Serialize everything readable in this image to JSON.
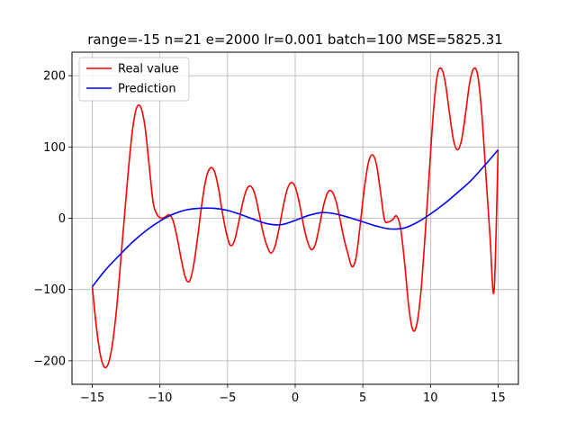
{
  "chart_data": {
    "type": "line",
    "title": "range=-15 n=21 e=2000 lr=0.001 batch=100 MSE=5825.31",
    "xlabel": "",
    "ylabel": "",
    "xlim": [
      -16.5,
      16.5
    ],
    "ylim": [
      -233,
      233
    ],
    "grid": true,
    "legend_position": "top-left",
    "x_ticks": [
      -15,
      -10,
      -5,
      0,
      5,
      10,
      15
    ],
    "x_tick_labels": [
      "−15",
      "−10",
      "−5",
      "0",
      "5",
      "10",
      "15"
    ],
    "y_ticks": [
      -200,
      -100,
      0,
      100,
      200
    ],
    "y_tick_labels": [
      "−200",
      "−100",
      "0",
      "100",
      "200"
    ],
    "series": [
      {
        "name": "Real value",
        "color": "#ff0000",
        "x": [
          -15,
          -14.7,
          -14.4,
          -14.1,
          -13.8,
          -13.5,
          -13.2,
          -12.9,
          -12.6,
          -12.3,
          -12,
          -11.7,
          -11.4,
          -11.1,
          -10.8,
          -10.5,
          -10.2,
          -9.9,
          -9.6,
          -9.3,
          -9,
          -8.7,
          -8.4,
          -8.1,
          -7.8,
          -7.5,
          -7.2,
          -6.9,
          -6.6,
          -6.3,
          -6,
          -5.7,
          -5.4,
          -5.1,
          -4.8,
          -4.5,
          -4.2,
          -3.9,
          -3.6,
          -3.3,
          -3,
          -2.7,
          -2.4,
          -2.1,
          -1.8,
          -1.5,
          -1.2,
          -0.9,
          -0.6,
          -0.3,
          0,
          0.3,
          0.6,
          0.9,
          1.2,
          1.5,
          1.8,
          2.1,
          2.4,
          2.7,
          3,
          3.3,
          3.6,
          3.9,
          4.2,
          4.5,
          4.8,
          5.1,
          5.4,
          5.7,
          6,
          6.3,
          6.6,
          6.9,
          7.2,
          7.5,
          7.8,
          8.1,
          8.4,
          8.7,
          9,
          9.3,
          9.6,
          9.9,
          10.2,
          10.5,
          10.8,
          11.1,
          11.4,
          11.7,
          12,
          12.3,
          12.6,
          12.9,
          13.2,
          13.5,
          13.8,
          14.1,
          14.4,
          14.7,
          15
        ],
        "y": [
          -96,
          -152,
          -192,
          -209,
          -203,
          -175,
          -126,
          -60,
          8,
          74,
          128,
          156,
          155,
          128,
          75,
          22,
          5,
          0,
          2,
          5,
          -5,
          -30,
          -60,
          -84,
          -88,
          -65,
          -25,
          20,
          55,
          70,
          67,
          45,
          10,
          -20,
          -38,
          -32,
          -8,
          20,
          40,
          45,
          35,
          10,
          -18,
          -38,
          -49,
          -40,
          -15,
          15,
          40,
          50,
          44,
          22,
          -8,
          -32,
          -44,
          -36,
          -10,
          18,
          36,
          38,
          25,
          0,
          -28,
          -50,
          -68,
          -55,
          -10,
          40,
          77,
          89,
          76,
          38,
          -2,
          -5,
          -2,
          3,
          -15,
          -65,
          -125,
          -157,
          -148,
          -102,
          -25,
          60,
          145,
          200,
          210,
          190,
          148,
          110,
          96,
          110,
          148,
          190,
          210,
          200,
          145,
          60,
          -25,
          -102,
          96
        ]
      },
      {
        "name": "Prediction",
        "color": "#0000ff",
        "x": [
          -15,
          -14,
          -13,
          -12,
          -11,
          -10,
          -9,
          -8,
          -7,
          -6,
          -5,
          -4,
          -3,
          -2,
          -1,
          0,
          1,
          2,
          3,
          4,
          5,
          6,
          7,
          8,
          9,
          10,
          11,
          12,
          13,
          14,
          15
        ],
        "y": [
          -96,
          -72,
          -52,
          -33,
          -17,
          -4,
          6,
          12,
          14,
          14,
          11,
          5,
          -2,
          -8,
          -9,
          -3,
          4,
          8,
          6,
          1,
          -5,
          -11,
          -15,
          -14,
          -6,
          6,
          20,
          36,
          53,
          74,
          96
        ]
      }
    ]
  }
}
